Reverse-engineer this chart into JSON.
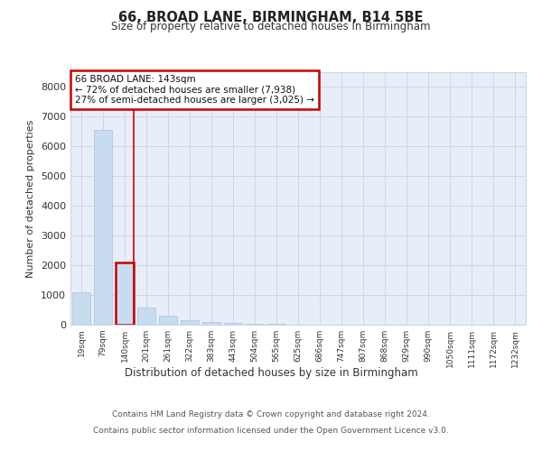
{
  "title": "66, BROAD LANE, BIRMINGHAM, B14 5BE",
  "subtitle": "Size of property relative to detached houses in Birmingham",
  "xlabel": "Distribution of detached houses by size in Birmingham",
  "ylabel": "Number of detached properties",
  "property_label": "66 BROAD LANE: 143sqm",
  "annotation_line1": "← 72% of detached houses are smaller (7,938)",
  "annotation_line2": "27% of semi-detached houses are larger (3,025) →",
  "bar_color": "#c8dcf0",
  "bar_edge_color": "#b0c8e0",
  "highlight_color": "#cc0000",
  "grid_color": "#ccd6e8",
  "bg_color": "#e8eef8",
  "categories": [
    "19sqm",
    "79sqm",
    "140sqm",
    "201sqm",
    "261sqm",
    "322sqm",
    "383sqm",
    "443sqm",
    "504sqm",
    "565sqm",
    "625sqm",
    "686sqm",
    "747sqm",
    "807sqm",
    "868sqm",
    "929sqm",
    "990sqm",
    "1050sqm",
    "1111sqm",
    "1172sqm",
    "1232sqm"
  ],
  "values": [
    1100,
    6550,
    2100,
    580,
    300,
    160,
    100,
    65,
    35,
    22,
    14,
    8,
    5,
    4,
    3,
    2,
    2,
    1,
    1,
    1,
    1
  ],
  "highlight_bar_index": 2,
  "ylim": [
    0,
    8500
  ],
  "yticks": [
    0,
    1000,
    2000,
    3000,
    4000,
    5000,
    6000,
    7000,
    8000
  ],
  "footer1": "Contains HM Land Registry data © Crown copyright and database right 2024.",
  "footer2": "Contains public sector information licensed under the Open Government Licence v3.0."
}
